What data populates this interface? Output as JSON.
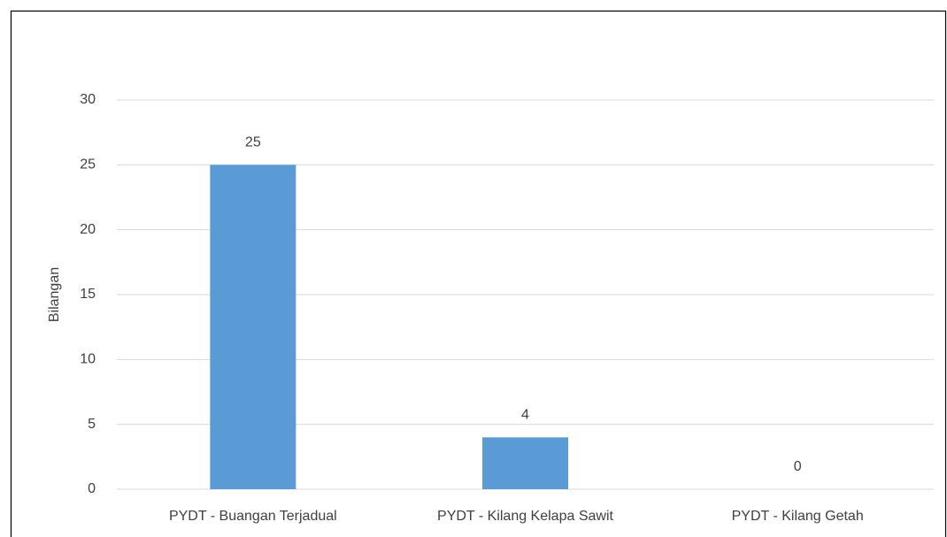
{
  "chart_data": {
    "type": "bar",
    "y_label": "Bilangan",
    "categories": [
      "PYDT - Buangan Terjadual",
      "PYDT - Kilang Kelapa Sawit",
      "PYDT - Kilang Getah"
    ],
    "values": [
      25,
      4,
      0
    ],
    "color": "#5b9bd5",
    "ylim": [
      0,
      30
    ],
    "yticks": [
      0,
      5,
      10,
      15,
      20,
      25,
      30
    ],
    "grid": true
  }
}
